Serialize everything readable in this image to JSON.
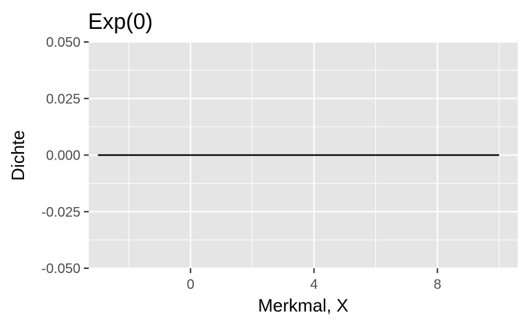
{
  "chart_data": {
    "type": "line",
    "title": "Exp(0)",
    "xlabel": "Merkmal, X",
    "ylabel": "Dichte",
    "xlim": [
      -3.3,
      10.6
    ],
    "ylim": [
      -0.05,
      0.05
    ],
    "x_ticks": [
      0,
      4,
      8
    ],
    "x_tick_labels": [
      "0",
      "4",
      "8"
    ],
    "y_ticks": [
      -0.05,
      -0.025,
      0,
      0.025,
      0.05
    ],
    "y_tick_labels": [
      "-0.050",
      "-0.025",
      "0.000",
      "0.025",
      "0.050"
    ],
    "grid": true,
    "series": [
      {
        "x": [
          -3,
          10
        ],
        "y": [
          0,
          0
        ],
        "color": "#000000"
      }
    ],
    "colors": {
      "panel": "#e5e5e5",
      "grid": "#ffffff",
      "line": "#000000",
      "tick_text": "#4d4d4d",
      "tick_mark": "#333333"
    }
  }
}
